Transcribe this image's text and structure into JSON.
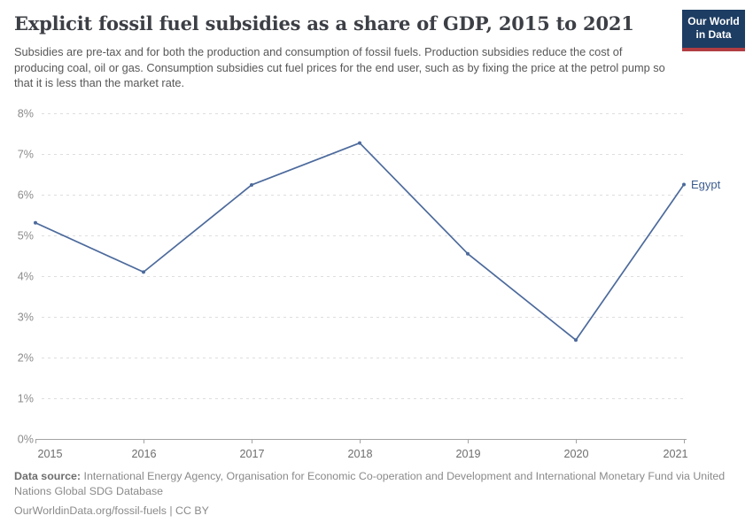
{
  "header": {
    "title": "Explicit fossil fuel subsidies as a share of GDP, 2015 to 2021",
    "subtitle": "Subsidies are pre-tax and for both the production and consumption of fossil fuels. Production subsidies reduce the cost of producing coal, oil or gas. Consumption subsidies cut fuel prices for the end user, such as by fixing the price at the petrol pump so that it is less than the market rate."
  },
  "logo": {
    "line1": "Our World",
    "line2": "in Data",
    "background_color": "#1d3d63",
    "stripe_color": "#b13d43"
  },
  "chart_data": {
    "type": "line",
    "title": "Explicit fossil fuel subsidies as a share of GDP, 2015 to 2021",
    "xlabel": "",
    "ylabel": "",
    "x": [
      2015,
      2016,
      2017,
      2018,
      2019,
      2020,
      2021
    ],
    "x_labels": [
      "2015",
      "2016",
      "2017",
      "2018",
      "2019",
      "2020",
      "2021"
    ],
    "series": [
      {
        "name": "Egypt",
        "values": [
          5.31,
          4.1,
          6.24,
          7.27,
          4.55,
          2.43,
          6.25
        ],
        "color": "#4C6A9C",
        "label_color": "#3D5C8F"
      }
    ],
    "ylim": [
      0,
      8
    ],
    "yticks": [
      0,
      1,
      2,
      3,
      4,
      5,
      6,
      7,
      8
    ],
    "ytick_labels": [
      "0%",
      "1%",
      "2%",
      "3%",
      "4%",
      "5%",
      "6%",
      "7%",
      "8%"
    ],
    "grid": true,
    "legend_position": "end-of-line",
    "grid_color": "#dedede",
    "axis_color": "#a3a3a3",
    "ytick_label_color": "#8c8c8c",
    "xtick_label_color": "#6e6e6e"
  },
  "footer": {
    "source_label": "Data source:",
    "source_text": " International Energy Agency, Organisation for Economic Co-operation and Development and International Monetary Fund via United Nations Global SDG Database",
    "link_line": "OurWorldinData.org/fossil-fuels | CC BY"
  }
}
